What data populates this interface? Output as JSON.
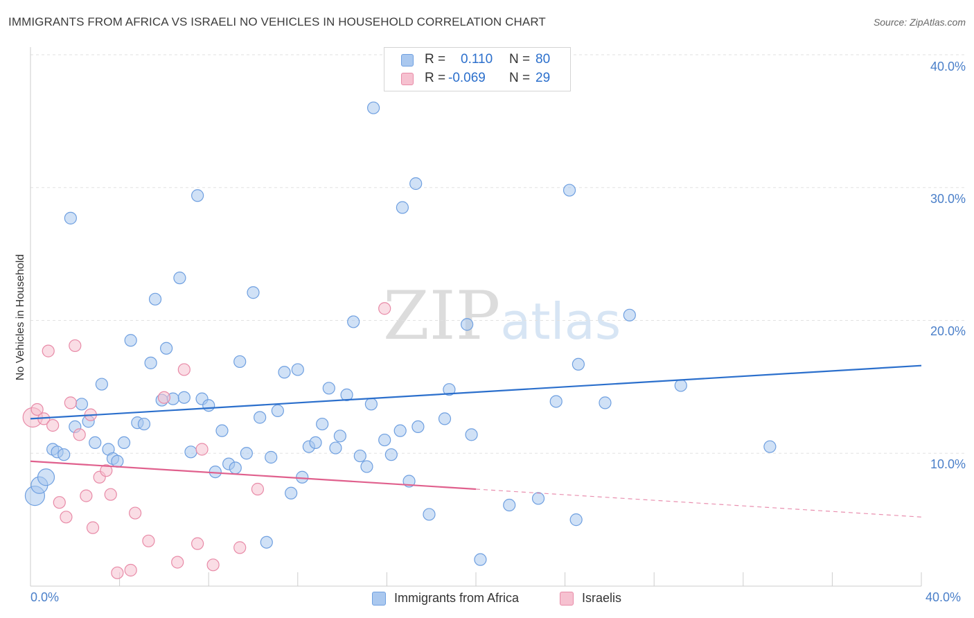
{
  "title": "IMMIGRANTS FROM AFRICA VS ISRAELI NO VEHICLES IN HOUSEHOLD CORRELATION CHART",
  "source": "Source: ZipAtlas.com",
  "watermark": {
    "zip": "ZIP",
    "atlas": "atlas"
  },
  "stats": [
    {
      "r_label": "R =",
      "r_value": "0.110",
      "n_label": "N =",
      "n_value": "80"
    },
    {
      "r_label": "R =",
      "r_value": "-0.069",
      "n_label": "N =",
      "n_value": "29"
    }
  ],
  "legend": [
    {
      "label": "Immigrants from Africa"
    },
    {
      "label": "Israelis"
    }
  ],
  "colors": {
    "blue_fill": "#aac8ef",
    "blue_stroke": "#6e9fe0",
    "blue_line": "#2b6fcc",
    "pink_fill": "#f6c1d0",
    "pink_stroke": "#e88aa7",
    "pink_line": "#e0608d",
    "tick_text": "#4a7fc9",
    "grid": "#e2e2e2"
  },
  "chart_data": {
    "type": "scatter",
    "title": "IMMIGRANTS FROM AFRICA VS ISRAELI NO VEHICLES IN HOUSEHOLD CORRELATION CHART",
    "xlabel": "",
    "ylabel": "No Vehicles in Household",
    "xlim": [
      0,
      40
    ],
    "ylim": [
      0,
      40
    ],
    "x_tick_labels": [
      "0.0%",
      "40.0%"
    ],
    "y_ticks": [
      10,
      20,
      30,
      40
    ],
    "y_tick_labels": [
      "10.0%",
      "20.0%",
      "30.0%",
      "40.0%"
    ],
    "series": [
      {
        "name": "Immigrants from Africa",
        "color": "blue",
        "points": [
          {
            "x": 0.2,
            "y": 6.8,
            "s": 3
          },
          {
            "x": 0.4,
            "y": 7.6,
            "s": 2
          },
          {
            "x": 0.7,
            "y": 8.2,
            "s": 2
          },
          {
            "x": 1.0,
            "y": 10.3,
            "s": 1
          },
          {
            "x": 1.2,
            "y": 10.1,
            "s": 1
          },
          {
            "x": 1.5,
            "y": 9.9,
            "s": 1
          },
          {
            "x": 1.8,
            "y": 27.7,
            "s": 1
          },
          {
            "x": 2.0,
            "y": 12.0,
            "s": 1
          },
          {
            "x": 2.3,
            "y": 13.7,
            "s": 1
          },
          {
            "x": 2.6,
            "y": 12.4,
            "s": 1
          },
          {
            "x": 2.9,
            "y": 10.8,
            "s": 1
          },
          {
            "x": 3.2,
            "y": 15.2,
            "s": 1
          },
          {
            "x": 3.5,
            "y": 10.3,
            "s": 1
          },
          {
            "x": 3.7,
            "y": 9.6,
            "s": 1
          },
          {
            "x": 3.9,
            "y": 9.4,
            "s": 1
          },
          {
            "x": 4.2,
            "y": 10.8,
            "s": 1
          },
          {
            "x": 4.5,
            "y": 18.5,
            "s": 1
          },
          {
            "x": 4.8,
            "y": 12.3,
            "s": 1
          },
          {
            "x": 5.1,
            "y": 12.2,
            "s": 1
          },
          {
            "x": 5.4,
            "y": 16.8,
            "s": 1
          },
          {
            "x": 5.6,
            "y": 21.6,
            "s": 1
          },
          {
            "x": 5.9,
            "y": 14.0,
            "s": 1
          },
          {
            "x": 6.1,
            "y": 17.9,
            "s": 1
          },
          {
            "x": 6.4,
            "y": 14.1,
            "s": 1
          },
          {
            "x": 6.7,
            "y": 23.2,
            "s": 1
          },
          {
            "x": 6.9,
            "y": 14.2,
            "s": 1
          },
          {
            "x": 7.2,
            "y": 10.1,
            "s": 1
          },
          {
            "x": 7.5,
            "y": 29.4,
            "s": 1
          },
          {
            "x": 7.7,
            "y": 14.1,
            "s": 1
          },
          {
            "x": 8.0,
            "y": 13.6,
            "s": 1
          },
          {
            "x": 8.3,
            "y": 8.6,
            "s": 1
          },
          {
            "x": 8.6,
            "y": 11.7,
            "s": 1
          },
          {
            "x": 8.9,
            "y": 9.2,
            "s": 1
          },
          {
            "x": 9.2,
            "y": 8.9,
            "s": 1
          },
          {
            "x": 9.4,
            "y": 16.9,
            "s": 1
          },
          {
            "x": 9.7,
            "y": 10.0,
            "s": 1
          },
          {
            "x": 10.0,
            "y": 22.1,
            "s": 1
          },
          {
            "x": 10.3,
            "y": 12.7,
            "s": 1
          },
          {
            "x": 10.6,
            "y": 3.3,
            "s": 1
          },
          {
            "x": 10.8,
            "y": 9.7,
            "s": 1
          },
          {
            "x": 11.1,
            "y": 13.2,
            "s": 1
          },
          {
            "x": 11.4,
            "y": 16.1,
            "s": 1
          },
          {
            "x": 11.7,
            "y": 7.0,
            "s": 1
          },
          {
            "x": 12.0,
            "y": 16.3,
            "s": 1
          },
          {
            "x": 12.2,
            "y": 8.2,
            "s": 1
          },
          {
            "x": 12.5,
            "y": 10.5,
            "s": 1
          },
          {
            "x": 12.8,
            "y": 10.8,
            "s": 1
          },
          {
            "x": 13.1,
            "y": 12.2,
            "s": 1
          },
          {
            "x": 13.4,
            "y": 14.9,
            "s": 1
          },
          {
            "x": 13.7,
            "y": 10.4,
            "s": 1
          },
          {
            "x": 13.9,
            "y": 11.3,
            "s": 1
          },
          {
            "x": 14.2,
            "y": 14.4,
            "s": 1
          },
          {
            "x": 14.5,
            "y": 19.9,
            "s": 1
          },
          {
            "x": 14.8,
            "y": 9.8,
            "s": 1
          },
          {
            "x": 15.1,
            "y": 9.0,
            "s": 1
          },
          {
            "x": 15.3,
            "y": 13.7,
            "s": 1
          },
          {
            "x": 15.4,
            "y": 36.0,
            "s": 1
          },
          {
            "x": 15.9,
            "y": 11.0,
            "s": 1
          },
          {
            "x": 16.2,
            "y": 9.9,
            "s": 1
          },
          {
            "x": 16.6,
            "y": 11.7,
            "s": 1
          },
          {
            "x": 16.7,
            "y": 28.5,
            "s": 1
          },
          {
            "x": 17.0,
            "y": 7.9,
            "s": 1
          },
          {
            "x": 17.3,
            "y": 30.3,
            "s": 1
          },
          {
            "x": 17.4,
            "y": 12.0,
            "s": 1
          },
          {
            "x": 17.9,
            "y": 5.4,
            "s": 1
          },
          {
            "x": 18.8,
            "y": 14.8,
            "s": 1
          },
          {
            "x": 19.6,
            "y": 19.7,
            "s": 1
          },
          {
            "x": 19.8,
            "y": 11.4,
            "s": 1
          },
          {
            "x": 20.2,
            "y": 2.0,
            "s": 1
          },
          {
            "x": 21.5,
            "y": 6.1,
            "s": 1
          },
          {
            "x": 22.8,
            "y": 6.6,
            "s": 1
          },
          {
            "x": 23.6,
            "y": 13.9,
            "s": 1
          },
          {
            "x": 24.2,
            "y": 29.8,
            "s": 1
          },
          {
            "x": 24.5,
            "y": 5.0,
            "s": 1
          },
          {
            "x": 24.6,
            "y": 16.7,
            "s": 1
          },
          {
            "x": 25.8,
            "y": 13.8,
            "s": 1
          },
          {
            "x": 26.9,
            "y": 20.4,
            "s": 1
          },
          {
            "x": 29.2,
            "y": 15.1,
            "s": 1
          },
          {
            "x": 33.2,
            "y": 10.5,
            "s": 1
          },
          {
            "x": 18.6,
            "y": 12.6,
            "s": 1
          }
        ]
      },
      {
        "name": "Israelis",
        "color": "pink",
        "points": [
          {
            "x": 0.1,
            "y": 12.7,
            "s": 3
          },
          {
            "x": 0.3,
            "y": 13.3,
            "s": 1
          },
          {
            "x": 0.6,
            "y": 12.6,
            "s": 1
          },
          {
            "x": 0.8,
            "y": 17.7,
            "s": 1
          },
          {
            "x": 1.0,
            "y": 12.1,
            "s": 1
          },
          {
            "x": 1.3,
            "y": 6.3,
            "s": 1
          },
          {
            "x": 1.6,
            "y": 5.2,
            "s": 1
          },
          {
            "x": 1.8,
            "y": 13.8,
            "s": 1
          },
          {
            "x": 2.0,
            "y": 18.1,
            "s": 1
          },
          {
            "x": 2.2,
            "y": 11.4,
            "s": 1
          },
          {
            "x": 2.5,
            "y": 6.8,
            "s": 1
          },
          {
            "x": 2.7,
            "y": 12.9,
            "s": 1
          },
          {
            "x": 2.8,
            "y": 4.4,
            "s": 1
          },
          {
            "x": 3.1,
            "y": 8.2,
            "s": 1
          },
          {
            "x": 3.4,
            "y": 8.7,
            "s": 1
          },
          {
            "x": 3.6,
            "y": 6.9,
            "s": 1
          },
          {
            "x": 3.9,
            "y": 1.0,
            "s": 1
          },
          {
            "x": 4.5,
            "y": 1.2,
            "s": 1
          },
          {
            "x": 4.7,
            "y": 5.5,
            "s": 1
          },
          {
            "x": 5.3,
            "y": 3.4,
            "s": 1
          },
          {
            "x": 6.0,
            "y": 14.2,
            "s": 1
          },
          {
            "x": 6.6,
            "y": 1.8,
            "s": 1
          },
          {
            "x": 6.9,
            "y": 16.3,
            "s": 1
          },
          {
            "x": 7.5,
            "y": 3.2,
            "s": 1
          },
          {
            "x": 7.7,
            "y": 10.3,
            "s": 1
          },
          {
            "x": 8.2,
            "y": 1.6,
            "s": 1
          },
          {
            "x": 9.4,
            "y": 2.9,
            "s": 1
          },
          {
            "x": 10.2,
            "y": 7.3,
            "s": 1
          },
          {
            "x": 15.9,
            "y": 20.9,
            "s": 1
          }
        ]
      }
    ],
    "trend_lines": [
      {
        "series": "Immigrants from Africa",
        "x": [
          0,
          40
        ],
        "y": [
          12.6,
          16.6
        ],
        "style": "solid"
      },
      {
        "series": "Israelis",
        "x": [
          0,
          20
        ],
        "y": [
          9.4,
          7.3
        ],
        "style": "solid"
      },
      {
        "series": "Israelis",
        "x": [
          20,
          40
        ],
        "y": [
          7.3,
          5.2
        ],
        "style": "dashed"
      }
    ]
  }
}
